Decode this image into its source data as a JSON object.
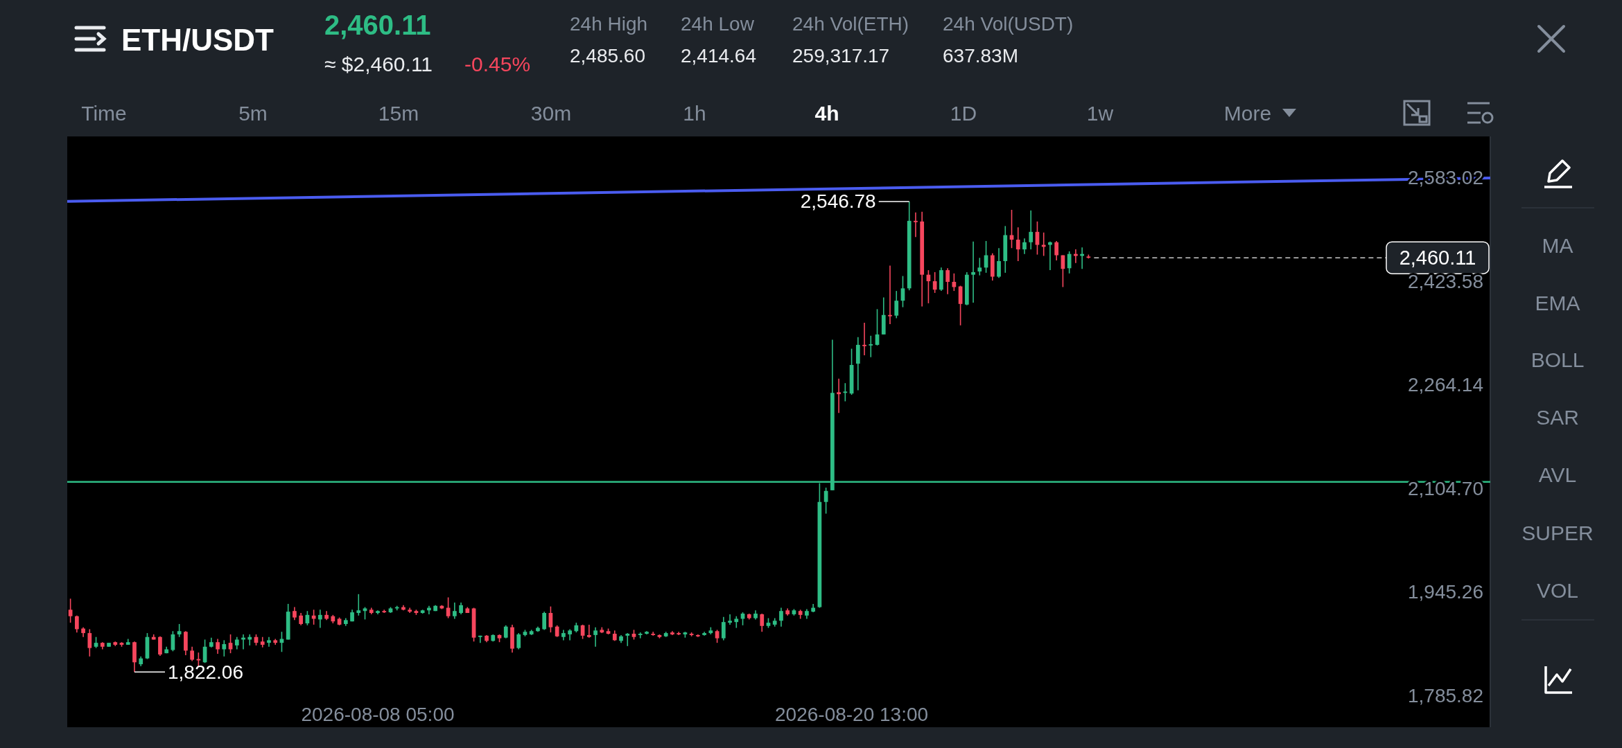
{
  "chart_data": {
    "type": "candlestick",
    "title": "ETH/USDT",
    "x": [
      "2026-07-31T05:00",
      "2026-07-31T09:00",
      "2026-07-31T13:00",
      "2026-07-31T17:00",
      "2026-07-31T21:00",
      "2026-08-01T01:00",
      "2026-08-01T05:00",
      "2026-08-01T09:00",
      "2026-08-01T13:00",
      "2026-08-01T17:00",
      "2026-08-01T21:00",
      "2026-08-02T01:00",
      "2026-08-02T05:00",
      "2026-08-02T09:00",
      "2026-08-02T13:00",
      "2026-08-02T17:00",
      "2026-08-02T21:00",
      "2026-08-03T01:00",
      "2026-08-03T05:00",
      "2026-08-03T09:00",
      "2026-08-03T13:00",
      "2026-08-03T17:00",
      "2026-08-03T21:00",
      "2026-08-04T01:00",
      "2026-08-04T05:00",
      "2026-08-04T09:00",
      "2026-08-04T13:00",
      "2026-08-04T17:00",
      "2026-08-04T21:00",
      "2026-08-05T01:00",
      "2026-08-05T05:00",
      "2026-08-05T09:00",
      "2026-08-05T13:00",
      "2026-08-05T17:00",
      "2026-08-05T21:00",
      "2026-08-06T01:00",
      "2026-08-06T05:00",
      "2026-08-06T09:00",
      "2026-08-06T13:00",
      "2026-08-06T17:00",
      "2026-08-06T21:00",
      "2026-08-07T01:00",
      "2026-08-07T05:00",
      "2026-08-07T09:00",
      "2026-08-07T13:00",
      "2026-08-07T17:00",
      "2026-08-07T21:00",
      "2026-08-08T01:00",
      "2026-08-08T05:00",
      "2026-08-08T09:00",
      "2026-08-08T13:00",
      "2026-08-08T17:00",
      "2026-08-08T21:00",
      "2026-08-09T01:00",
      "2026-08-09T05:00",
      "2026-08-09T09:00",
      "2026-08-09T13:00",
      "2026-08-09T17:00",
      "2026-08-09T21:00",
      "2026-08-10T01:00",
      "2026-08-10T05:00",
      "2026-08-10T09:00",
      "2026-08-10T13:00",
      "2026-08-10T17:00",
      "2026-08-10T21:00",
      "2026-08-11T01:00",
      "2026-08-11T05:00",
      "2026-08-11T09:00",
      "2026-08-11T13:00",
      "2026-08-11T17:00",
      "2026-08-11T21:00",
      "2026-08-12T01:00",
      "2026-08-12T05:00",
      "2026-08-12T09:00",
      "2026-08-12T13:00",
      "2026-08-12T17:00",
      "2026-08-12T21:00",
      "2026-08-13T01:00",
      "2026-08-13T05:00",
      "2026-08-13T09:00",
      "2026-08-13T13:00",
      "2026-08-13T17:00",
      "2026-08-13T21:00",
      "2026-08-14T01:00",
      "2026-08-14T05:00",
      "2026-08-14T09:00",
      "2026-08-14T13:00",
      "2026-08-14T17:00",
      "2026-08-14T21:00",
      "2026-08-15T01:00",
      "2026-08-15T05:00",
      "2026-08-15T09:00",
      "2026-08-15T13:00",
      "2026-08-15T17:00",
      "2026-08-15T21:00",
      "2026-08-16T01:00",
      "2026-08-16T05:00",
      "2026-08-16T09:00",
      "2026-08-16T13:00",
      "2026-08-16T17:00",
      "2026-08-16T21:00",
      "2026-08-17T01:00",
      "2026-08-17T05:00",
      "2026-08-17T09:00",
      "2026-08-17T13:00",
      "2026-08-17T17:00",
      "2026-08-17T21:00",
      "2026-08-18T01:00",
      "2026-08-18T05:00",
      "2026-08-18T09:00",
      "2026-08-18T13:00",
      "2026-08-18T17:00",
      "2026-08-18T21:00",
      "2026-08-19T01:00",
      "2026-08-19T05:00",
      "2026-08-19T09:00",
      "2026-08-19T13:00",
      "2026-08-19T17:00",
      "2026-08-19T21:00",
      "2026-08-20T01:00",
      "2026-08-20T05:00",
      "2026-08-20T09:00",
      "2026-08-20T13:00",
      "2026-08-20T17:00",
      "2026-08-20T21:00",
      "2026-08-21T01:00",
      "2026-08-21T05:00",
      "2026-08-21T09:00",
      "2026-08-21T13:00",
      "2026-08-21T17:00",
      "2026-08-21T21:00",
      "2026-08-22T01:00",
      "2026-08-22T05:00",
      "2026-08-22T09:00",
      "2026-08-22T13:00",
      "2026-08-22T17:00",
      "2026-08-22T21:00",
      "2026-08-23T01:00",
      "2026-08-23T05:00",
      "2026-08-23T09:00",
      "2026-08-23T13:00",
      "2026-08-23T17:00",
      "2026-08-23T21:00",
      "2026-08-24T01:00",
      "2026-08-24T05:00",
      "2026-08-24T09:00",
      "2026-08-24T13:00",
      "2026-08-24T17:00",
      "2026-08-24T21:00",
      "2026-08-25T01:00",
      "2026-08-25T05:00",
      "2026-08-25T09:00",
      "2026-08-25T13:00",
      "2026-08-25T17:00",
      "2026-08-25T21:00",
      "2026-08-26T01:00",
      "2026-08-26T05:00",
      "2026-08-26T09:00",
      "2026-08-26T13:00",
      "2026-08-26T17:00"
    ],
    "ohlc": [
      [
        1918,
        1935,
        1898,
        1908
      ],
      [
        1908,
        1909,
        1883,
        1888
      ],
      [
        1889,
        1891,
        1876,
        1882
      ],
      [
        1882,
        1888,
        1846,
        1859
      ],
      [
        1861,
        1876,
        1859,
        1867
      ],
      [
        1867,
        1868,
        1857,
        1861
      ],
      [
        1861,
        1867,
        1861,
        1867
      ],
      [
        1868,
        1869,
        1862,
        1864
      ],
      [
        1867,
        1868,
        1861,
        1864
      ],
      [
        1864,
        1873,
        1864,
        1868
      ],
      [
        1868,
        1869,
        1822.06,
        1837
      ],
      [
        1834,
        1846,
        1831,
        1843
      ],
      [
        1843,
        1882,
        1842,
        1876
      ],
      [
        1876,
        1880,
        1872,
        1872
      ],
      [
        1876,
        1877,
        1847,
        1849
      ],
      [
        1851,
        1861,
        1851,
        1857
      ],
      [
        1856,
        1885,
        1854,
        1880
      ],
      [
        1880,
        1896,
        1876,
        1885
      ],
      [
        1884,
        1885,
        1848,
        1855
      ],
      [
        1855,
        1861,
        1839,
        1841
      ],
      [
        1842,
        1852,
        1830,
        1840
      ],
      [
        1837,
        1872,
        1836,
        1861
      ],
      [
        1861,
        1875,
        1860,
        1868
      ],
      [
        1868,
        1873,
        1850,
        1857
      ],
      [
        1857,
        1871,
        1846,
        1865
      ],
      [
        1867,
        1880,
        1851,
        1857
      ],
      [
        1863,
        1876,
        1857,
        1872
      ],
      [
        1872,
        1880,
        1857,
        1875
      ],
      [
        1872,
        1880,
        1863,
        1876
      ],
      [
        1876,
        1880,
        1863,
        1867
      ],
      [
        1869,
        1876,
        1860,
        1864
      ],
      [
        1867,
        1876,
        1861,
        1871
      ],
      [
        1871,
        1873,
        1864,
        1867
      ],
      [
        1867,
        1884,
        1853,
        1873
      ],
      [
        1872,
        1927,
        1872,
        1915
      ],
      [
        1916,
        1922,
        1902,
        1906
      ],
      [
        1909,
        1913,
        1894,
        1896
      ],
      [
        1897,
        1916,
        1894,
        1910
      ],
      [
        1909,
        1918,
        1895,
        1904
      ],
      [
        1903,
        1918,
        1890,
        1910
      ],
      [
        1910,
        1916,
        1902,
        1904
      ],
      [
        1908,
        1910,
        1897,
        1900
      ],
      [
        1904,
        1906,
        1894,
        1895
      ],
      [
        1896,
        1905,
        1893,
        1902
      ],
      [
        1900,
        1918,
        1900,
        1914
      ],
      [
        1913,
        1942,
        1909,
        1917
      ],
      [
        1916,
        1922,
        1903,
        1920
      ],
      [
        1918,
        1921,
        1911,
        1913
      ],
      [
        1913,
        1917,
        1911,
        1916
      ],
      [
        1916,
        1918,
        1913,
        1914
      ],
      [
        1914,
        1922,
        1913,
        1920
      ],
      [
        1920,
        1924,
        1917,
        1922
      ],
      [
        1922,
        1925,
        1917,
        1918
      ],
      [
        1918,
        1921,
        1913,
        1915
      ],
      [
        1916,
        1918,
        1910,
        1913
      ],
      [
        1913,
        1918,
        1912,
        1917
      ],
      [
        1917,
        1924,
        1911,
        1921
      ],
      [
        1916,
        1925,
        1916,
        1924
      ],
      [
        1924,
        1925,
        1919,
        1920
      ],
      [
        1921,
        1937,
        1905,
        1908
      ],
      [
        1908,
        1929,
        1904,
        1916
      ],
      [
        1913,
        1929,
        1911,
        1925
      ],
      [
        1920,
        1922,
        1913,
        1913
      ],
      [
        1920,
        1921,
        1869,
        1875
      ],
      [
        1876,
        1878,
        1867,
        1878
      ],
      [
        1878,
        1879,
        1868,
        1870
      ],
      [
        1870,
        1880,
        1869,
        1879
      ],
      [
        1879,
        1880,
        1868,
        1874
      ],
      [
        1875,
        1894,
        1874,
        1892
      ],
      [
        1891,
        1895,
        1852,
        1858
      ],
      [
        1859,
        1882,
        1857,
        1880
      ],
      [
        1879,
        1887,
        1877,
        1884
      ],
      [
        1880,
        1887,
        1879,
        1885
      ],
      [
        1885,
        1892,
        1884,
        1890
      ],
      [
        1888,
        1915,
        1887,
        1913
      ],
      [
        1913,
        1923,
        1883,
        1891
      ],
      [
        1892,
        1894,
        1876,
        1877
      ],
      [
        1876,
        1887,
        1871,
        1882
      ],
      [
        1880,
        1888,
        1871,
        1886
      ],
      [
        1885,
        1898,
        1883,
        1894
      ],
      [
        1894,
        1895,
        1873,
        1878
      ],
      [
        1879,
        1895,
        1875,
        1876
      ],
      [
        1879,
        1891,
        1861,
        1886
      ],
      [
        1887,
        1891,
        1882,
        1883
      ],
      [
        1885,
        1889,
        1880,
        1881
      ],
      [
        1881,
        1886,
        1870,
        1871
      ],
      [
        1870,
        1879,
        1867,
        1877
      ],
      [
        1878,
        1882,
        1862,
        1881
      ],
      [
        1881,
        1887,
        1872,
        1876
      ],
      [
        1879,
        1883,
        1874,
        1881
      ],
      [
        1881,
        1885,
        1880,
        1884
      ],
      [
        1881,
        1884,
        1878,
        1879
      ],
      [
        1879,
        1880,
        1874,
        1876
      ],
      [
        1877,
        1884,
        1876,
        1882
      ],
      [
        1883,
        1885,
        1879,
        1880
      ],
      [
        1882,
        1884,
        1879,
        1880
      ],
      [
        1880,
        1884,
        1875,
        1883
      ],
      [
        1881,
        1883,
        1877,
        1879
      ],
      [
        1879,
        1880,
        1876,
        1877
      ],
      [
        1879,
        1884,
        1878,
        1882
      ],
      [
        1882,
        1891,
        1880,
        1886
      ],
      [
        1885,
        1887,
        1867,
        1874
      ],
      [
        1874,
        1907,
        1871,
        1899
      ],
      [
        1898,
        1911,
        1895,
        1901
      ],
      [
        1899,
        1908,
        1890,
        1904
      ],
      [
        1904,
        1914,
        1894,
        1912
      ],
      [
        1911,
        1912,
        1903,
        1905
      ],
      [
        1905,
        1917,
        1903,
        1912
      ],
      [
        1911,
        1912,
        1884,
        1893
      ],
      [
        1893,
        1905,
        1890,
        1898
      ],
      [
        1895,
        1905,
        1892,
        1901
      ],
      [
        1901,
        1921,
        1892,
        1916
      ],
      [
        1917,
        1920,
        1909,
        1911
      ],
      [
        1911,
        1919,
        1909,
        1917
      ],
      [
        1916,
        1918,
        1904,
        1910
      ],
      [
        1909,
        1919,
        1904,
        1916
      ],
      [
        1915,
        1927,
        1914,
        1921
      ],
      [
        1922,
        2113,
        1921,
        2084
      ],
      [
        2084,
        2106,
        2066,
        2101
      ],
      [
        2102,
        2334,
        2102,
        2252
      ],
      [
        2253,
        2274,
        2221,
        2250
      ],
      [
        2252,
        2267,
        2239,
        2254
      ],
      [
        2251,
        2320,
        2249,
        2295
      ],
      [
        2297,
        2338,
        2256,
        2326
      ],
      [
        2326,
        2360,
        2310,
        2324
      ],
      [
        2325,
        2340,
        2307,
        2327
      ],
      [
        2326,
        2381,
        2325,
        2342
      ],
      [
        2342,
        2399,
        2342,
        2372
      ],
      [
        2372,
        2448,
        2358,
        2370
      ],
      [
        2371,
        2409,
        2367,
        2394
      ],
      [
        2394,
        2432,
        2384,
        2413
      ],
      [
        2413,
        2546.78,
        2410,
        2517
      ],
      [
        2517,
        2530,
        2492,
        2515
      ],
      [
        2516,
        2531,
        2385,
        2434
      ],
      [
        2434,
        2441,
        2390,
        2424
      ],
      [
        2424,
        2438,
        2406,
        2411
      ],
      [
        2411,
        2445,
        2409,
        2441
      ],
      [
        2441,
        2444,
        2404,
        2423
      ],
      [
        2423,
        2436,
        2409,
        2415
      ],
      [
        2416,
        2417,
        2356,
        2389
      ],
      [
        2388,
        2438,
        2387,
        2434
      ],
      [
        2434,
        2485,
        2391,
        2438
      ],
      [
        2439,
        2460,
        2433,
        2445
      ],
      [
        2445,
        2486,
        2437,
        2464
      ],
      [
        2464,
        2467,
        2425,
        2431
      ],
      [
        2431,
        2475,
        2429,
        2455
      ],
      [
        2455,
        2509,
        2437,
        2495
      ],
      [
        2495,
        2534,
        2475,
        2488
      ],
      [
        2488,
        2507,
        2455,
        2473
      ],
      [
        2473,
        2490,
        2466,
        2484
      ],
      [
        2484,
        2533,
        2473,
        2500
      ],
      [
        2500,
        2516,
        2465,
        2480
      ],
      [
        2480,
        2499,
        2463,
        2477
      ],
      [
        2480,
        2485,
        2441,
        2484
      ],
      [
        2484,
        2486,
        2456,
        2464
      ],
      [
        2464,
        2464,
        2415,
        2443
      ],
      [
        2444,
        2470,
        2436,
        2466
      ],
      [
        2466,
        2473,
        2452,
        2463
      ],
      [
        2463,
        2476,
        2443,
        2466
      ],
      [
        2462,
        2465,
        2459,
        2460.11
      ]
    ],
    "series": [
      {
        "type": "line",
        "x": [
          "2026-07-31T03:00",
          "2026-09-06T04:00"
        ],
        "values": [
          2547,
          2583
        ],
        "color": "#4a5cf0"
      }
    ],
    "xlim": [
      "2026-07-31T03:00",
      "2026-09-06T04:00"
    ],
    "xticks": [
      {
        "value": "2026-08-08T05:00",
        "label": "2026-08-08 05:00"
      },
      {
        "value": "2026-08-20T13:00",
        "label": "2026-08-20 13:00"
      }
    ],
    "ylim": [
      1737,
      2647
    ],
    "yticks": [
      {
        "value": 1785.82,
        "label": "1,785.82"
      },
      {
        "value": 1945.26,
        "label": "1,945.26"
      },
      {
        "value": 2104.7,
        "label": "2,104.70"
      },
      {
        "value": 2264.14,
        "label": "2,264.14"
      },
      {
        "value": 2423.58,
        "label": "2,423.58"
      },
      {
        "value": 2583.02,
        "label": "2,583.02"
      }
    ],
    "ref_lines": [
      {
        "axis": "y",
        "value": 2115,
        "color": "#2ebd85"
      },
      {
        "axis": "y",
        "value": 2460.11,
        "label": "2,460.11",
        "line_style": "dashed",
        "color": "#ffffff"
      }
    ],
    "annotations": [
      "2,460.11",
      "≈ $2,460.11",
      "-0.45%",
      "24h High",
      "2,485.60",
      "24h Low",
      "2,414.64",
      "24h Vol(ETH)",
      "259,317.17",
      "24h Vol(USDT)",
      "637.83M",
      "Time",
      "5m",
      "15m",
      "30m",
      "1h",
      "4h",
      "1D",
      "1w",
      "More",
      "MA",
      "EMA",
      "BOLL",
      "SAR",
      "AVL",
      "SUPER",
      "VOL",
      {
        "text": "2,546.78",
        "x": "2026-08-22T01:00",
        "y": 2546.78
      },
      {
        "text": "1,822.06",
        "x": "2026-08-01T21:00",
        "y": 1822.06
      }
    ]
  }
}
